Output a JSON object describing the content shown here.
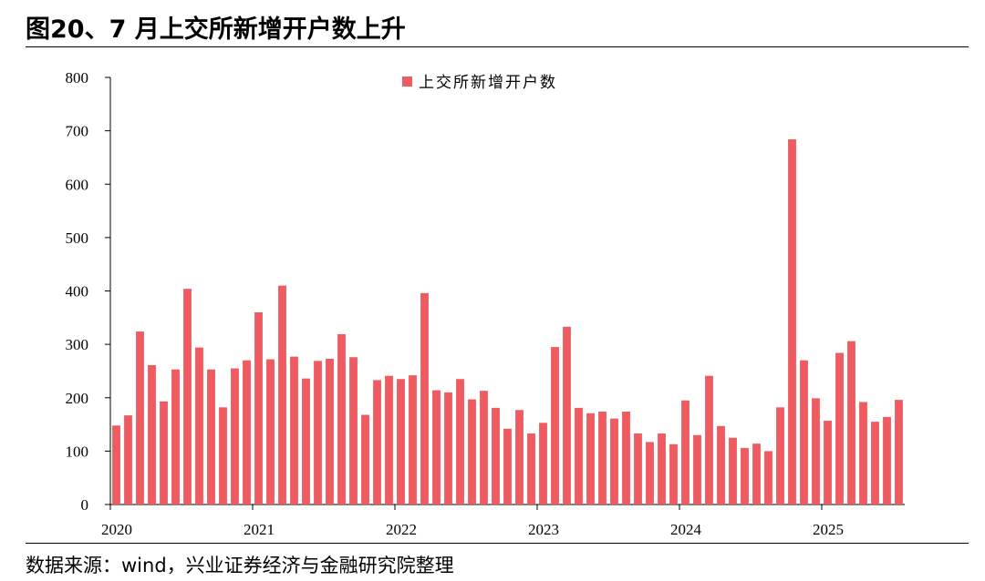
{
  "header": {
    "title": "图20、7 月上交所新增开户数上升"
  },
  "footer": {
    "source": "数据来源：wind，兴业证券经济与金融研究院整理"
  },
  "colors": {
    "bar": "#EE5C62",
    "axis": "#000000"
  },
  "chart_data": {
    "type": "bar",
    "title": "",
    "xlabel": "",
    "ylabel": "",
    "ylim": [
      0,
      800
    ],
    "yticks": [
      0,
      100,
      200,
      300,
      400,
      500,
      600,
      700,
      800
    ],
    "year_labels": [
      "2020",
      "2021",
      "2022",
      "2023",
      "2024",
      "2025"
    ],
    "legend": {
      "label": "上交所新增开户数",
      "position": "top-center"
    },
    "grid": false,
    "series": [
      {
        "name": "上交所新增开户数",
        "values": [
          148,
          167,
          324,
          261,
          193,
          253,
          404,
          294,
          253,
          182,
          255,
          270,
          360,
          272,
          410,
          277,
          236,
          269,
          273,
          319,
          276,
          168,
          233,
          241,
          235,
          242,
          396,
          214,
          210,
          235,
          197,
          213,
          181,
          142,
          177,
          133,
          153,
          295,
          333,
          181,
          171,
          174,
          161,
          174,
          133,
          117,
          133,
          113,
          195,
          130,
          241,
          147,
          125,
          106,
          114,
          100,
          182,
          684,
          270,
          199,
          157,
          284,
          306,
          192,
          155,
          164,
          196
        ]
      }
    ]
  }
}
